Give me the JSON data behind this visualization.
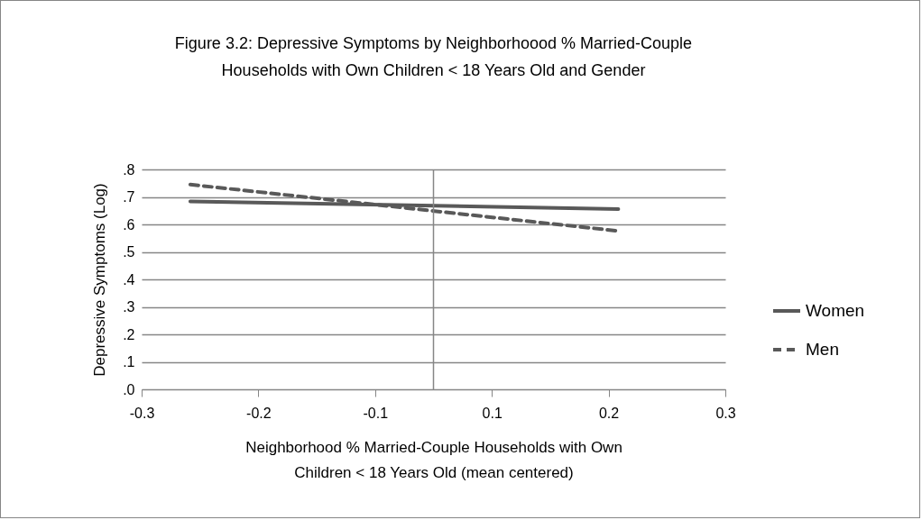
{
  "chart_data": {
    "type": "line",
    "title": "Figure 3.2:   Depressive Symptoms by Neighborhoood % Married-Couple\nHouseholds with Own Children < 18 Years Old and Gender",
    "xlabel": "Neighborhood % Married-Couple Households with Own\nChildren < 18 Years Old (mean centered)",
    "ylabel": "Depressive Symptoms (Log)",
    "x": [
      -0.25,
      0.19
    ],
    "series": [
      {
        "name": "Women",
        "color": "#595959",
        "line_style": "solid",
        "values": [
          0.684,
          0.656
        ]
      },
      {
        "name": "Men",
        "color": "#595959",
        "line_style": "dashed",
        "values": [
          0.745,
          0.576
        ]
      }
    ],
    "xlim": [
      -0.3,
      0.3
    ],
    "xticks": [
      -0.3,
      {
        "value": -0.18,
        "label": "-0.2"
      },
      {
        "value": -0.06,
        "label": "-0.1"
      },
      {
        "value": 0.06,
        "label": "0.1"
      },
      {
        "value": 0.18,
        "label": "0.2"
      },
      0.3
    ],
    "ylim": [
      0,
      0.8
    ],
    "yticks": [
      {
        "value": 0,
        "label": ".0"
      },
      {
        "value": 0.1,
        "label": ".1"
      },
      {
        "value": 0.2,
        "label": ".2"
      },
      {
        "value": 0.3,
        "label": ".3"
      },
      {
        "value": 0.4,
        "label": ".4"
      },
      {
        "value": 0.5,
        "label": ".5"
      },
      {
        "value": 0.6,
        "label": ".6"
      },
      {
        "value": 0.7,
        "label": ".7"
      },
      {
        "value": 0.8,
        "label": ".8"
      }
    ],
    "grid": "y",
    "legend": "right",
    "marker": "none",
    "ref_lines": [
      {
        "axis": "x",
        "value": 0,
        "color": "#868686"
      }
    ]
  }
}
